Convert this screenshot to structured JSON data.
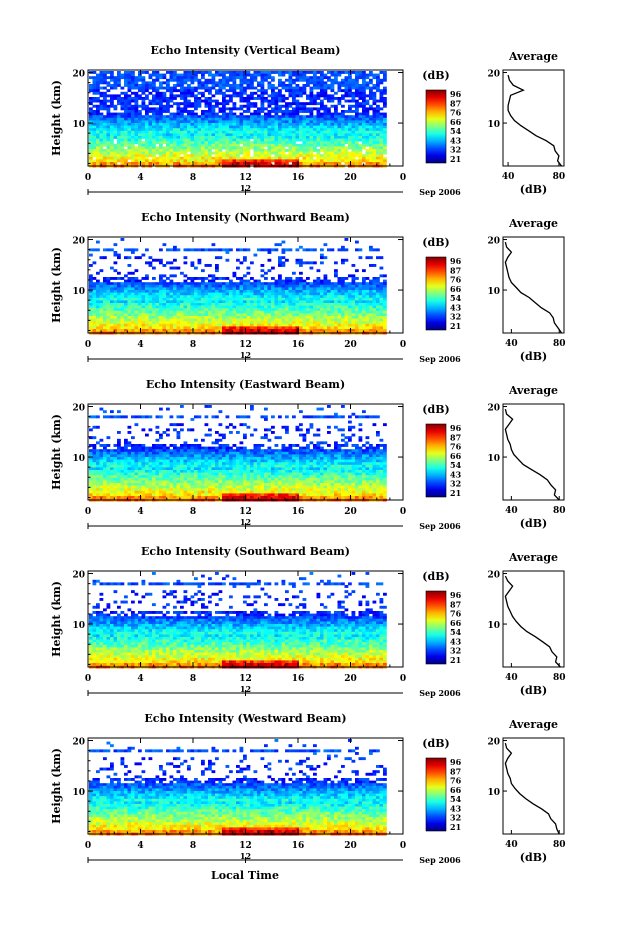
{
  "figure": {
    "xlabel": "Local Time",
    "date_label": "Sep 2006",
    "colorbar_unit": "(dB)",
    "colorbar_ticks": [
      "96",
      "87",
      "76",
      "66",
      "54",
      "43",
      "32",
      "21"
    ],
    "avg_title": "Average",
    "avg_xlabel": "(dB)"
  },
  "chart_data": [
    {
      "type": "heatmap",
      "title": "Echo Intensity (Vertical Beam)",
      "ylabel": "Height (km)",
      "xlabel": "",
      "x_ticks": [
        "0",
        "4",
        "8",
        "12",
        "16",
        "20",
        "0"
      ],
      "x_range": [
        0,
        24
      ],
      "y_ticks": [
        "20",
        "10"
      ],
      "y_range": [
        1.5,
        20.5
      ],
      "date_tick": "12",
      "colorbar": [
        96,
        87,
        76,
        66,
        54,
        43,
        32,
        21
      ],
      "average_profile": {
        "x_ticks": [
          "40",
          "80"
        ],
        "x_range": [
          36,
          84
        ],
        "heights": [
          1.5,
          2.5,
          3.5,
          4.5,
          5.5,
          6.5,
          7.5,
          8.5,
          9.5,
          10.5,
          11.5,
          12.5,
          13.5,
          14.5,
          15.5,
          16.5,
          17.5,
          18.5,
          19.5
        ],
        "values": [
          82,
          79,
          80,
          77,
          76,
          70,
          62,
          56,
          50,
          45,
          42,
          40,
          40,
          41,
          42,
          52,
          44,
          41,
          40
        ]
      }
    },
    {
      "type": "heatmap",
      "title": "Echo Intensity (Northward Beam)",
      "ylabel": "Height (km)",
      "xlabel": "",
      "x_ticks": [
        "0",
        "4",
        "8",
        "12",
        "16",
        "20",
        "0"
      ],
      "x_range": [
        0,
        24
      ],
      "y_ticks": [
        "20",
        "10"
      ],
      "y_range": [
        1.5,
        20.5
      ],
      "date_tick": "12",
      "colorbar": [
        96,
        87,
        76,
        66,
        54,
        43,
        32,
        21
      ],
      "average_profile": {
        "x_ticks": [
          "40",
          "80"
        ],
        "x_range": [
          33,
          84
        ],
        "heights": [
          1.5,
          2.5,
          3.5,
          4.5,
          5.5,
          6.5,
          7.5,
          8.5,
          9.5,
          10.5,
          11.5,
          12.5,
          13.5,
          14.5,
          15.5,
          16.5,
          17.5,
          18.5,
          19.5
        ],
        "values": [
          82,
          79,
          76,
          75,
          72,
          65,
          60,
          55,
          48,
          44,
          40,
          38,
          37,
          36,
          35,
          37,
          40,
          36,
          35
        ]
      }
    },
    {
      "type": "heatmap",
      "title": "Echo Intensity (Eastward Beam)",
      "ylabel": "Height (km)",
      "xlabel": "",
      "x_ticks": [
        "0",
        "4",
        "8",
        "12",
        "16",
        "20",
        "0"
      ],
      "x_range": [
        0,
        24
      ],
      "y_ticks": [
        "20",
        "10"
      ],
      "y_range": [
        1.5,
        20.5
      ],
      "date_tick": "12",
      "colorbar": [
        96,
        87,
        76,
        66,
        54,
        43,
        32,
        21
      ],
      "average_profile": {
        "x_ticks": [
          "40",
          "80"
        ],
        "x_range": [
          33,
          84
        ],
        "heights": [
          1.5,
          2.5,
          3.5,
          4.5,
          5.5,
          6.5,
          7.5,
          8.5,
          9.5,
          10.5,
          11.5,
          12.5,
          13.5,
          14.5,
          15.5,
          16.5,
          17.5,
          18.5,
          19.5
        ],
        "values": [
          80,
          76,
          77,
          73,
          70,
          64,
          57,
          50,
          46,
          42,
          40,
          39,
          37,
          36,
          35,
          38,
          41,
          36,
          35
        ]
      }
    },
    {
      "type": "heatmap",
      "title": "Echo Intensity (Southward Beam)",
      "ylabel": "Height (km)",
      "xlabel": "",
      "x_ticks": [
        "0",
        "4",
        "8",
        "12",
        "16",
        "20",
        "0"
      ],
      "x_range": [
        0,
        24
      ],
      "y_ticks": [
        "20",
        "10"
      ],
      "y_range": [
        1.5,
        20.5
      ],
      "date_tick": "12",
      "colorbar": [
        96,
        87,
        76,
        66,
        54,
        43,
        32,
        21
      ],
      "average_profile": {
        "x_ticks": [
          "40",
          "80"
        ],
        "x_range": [
          33,
          84
        ],
        "heights": [
          1.5,
          2.5,
          3.5,
          4.5,
          5.5,
          6.5,
          7.5,
          8.5,
          9.5,
          10.5,
          11.5,
          12.5,
          13.5,
          14.5,
          15.5,
          16.5,
          17.5,
          18.5,
          19.5
        ],
        "values": [
          81,
          77,
          78,
          74,
          72,
          66,
          60,
          53,
          48,
          44,
          41,
          39,
          37,
          36,
          35,
          38,
          41,
          37,
          35
        ]
      }
    },
    {
      "type": "heatmap",
      "title": "Echo Intensity (Westward Beam)",
      "ylabel": "Height (km)",
      "xlabel": "Local Time",
      "x_ticks": [
        "0",
        "4",
        "8",
        "12",
        "16",
        "20",
        "0"
      ],
      "x_range": [
        0,
        24
      ],
      "y_ticks": [
        "20",
        "10"
      ],
      "y_range": [
        1.5,
        20.5
      ],
      "date_tick": "12",
      "colorbar": [
        96,
        87,
        76,
        66,
        54,
        43,
        32,
        21
      ],
      "average_profile": {
        "x_ticks": [
          "40",
          "80"
        ],
        "x_range": [
          33,
          84
        ],
        "heights": [
          1.5,
          2.5,
          3.5,
          4.5,
          5.5,
          6.5,
          7.5,
          8.5,
          9.5,
          10.5,
          11.5,
          12.5,
          13.5,
          14.5,
          15.5,
          16.5,
          17.5,
          18.5,
          19.5
        ],
        "values": [
          80,
          78,
          77,
          73,
          71,
          65,
          58,
          52,
          47,
          43,
          40,
          39,
          37,
          36,
          35,
          37,
          40,
          36,
          35
        ]
      }
    }
  ]
}
